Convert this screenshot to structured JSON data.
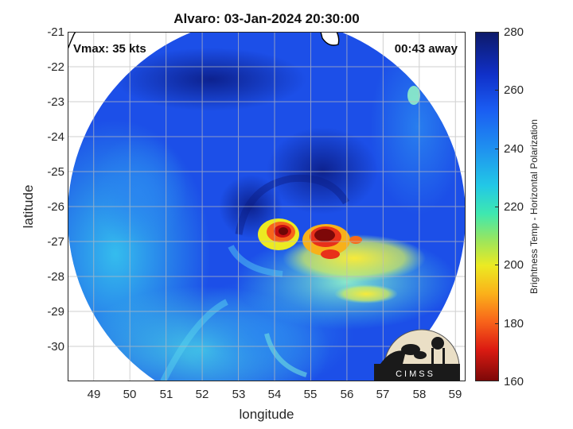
{
  "title": "Alvaro: 03-Jan-2024 20:30:00",
  "annotations": {
    "vmax": "Vmax: 35 kts",
    "time_away": "00:43 away"
  },
  "axes": {
    "xlabel": "longitude",
    "ylabel": "latitude",
    "xlim": [
      48.3,
      59.3
    ],
    "ylim": [
      -31,
      -21
    ],
    "xticks": [
      "49",
      "50",
      "51",
      "52",
      "53",
      "54",
      "55",
      "56",
      "57",
      "58",
      "59"
    ],
    "yticks": [
      "-21",
      "-22",
      "-23",
      "-24",
      "-25",
      "-26",
      "-27",
      "-28",
      "-29",
      "-30"
    ],
    "grid": true
  },
  "colorbar": {
    "label": "Brightness Temp - Horizontal Polarization",
    "range": [
      160,
      280
    ],
    "ticks": [
      "280",
      "260",
      "240",
      "220",
      "200",
      "180",
      "160"
    ]
  },
  "logo": {
    "text": "CIMSS"
  },
  "colors": {
    "background_blue": "#1a4fe6",
    "cold_core": "#7d0808",
    "rain_band": "#f5e83a"
  }
}
